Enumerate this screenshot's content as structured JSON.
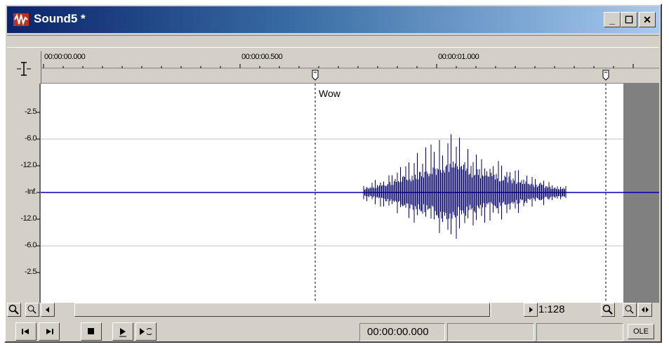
{
  "window": {
    "title": "Sound5 *",
    "controls": {
      "minimize": "_",
      "maximize": "☐",
      "close": "✕"
    }
  },
  "ruler": {
    "time_labels": [
      "00:00:00.000",
      "00:00:00.500",
      "00:00:01.000"
    ]
  },
  "db_scale": [
    "-2.5",
    "-6.0",
    "-12.0",
    "-Inf.",
    "-12.0",
    "-6.0",
    "-2.5"
  ],
  "waveform": {
    "marker_label": "Wow",
    "wave_color": "#000066",
    "center_line_color": "#0000aa"
  },
  "scroll": {
    "zoom_ratio": "1:128"
  },
  "status": {
    "position": "00:00:00.000",
    "selection": "",
    "length": "",
    "ole_label": "OLE"
  },
  "icons": [
    "sound-forge-app-icon",
    "level-ruler-icon",
    "marker-icon",
    "zoom-icon",
    "zoom-in-icon",
    "scroll-left-icon",
    "scroll-right-icon",
    "go-to-start-icon",
    "go-to-end-icon",
    "stop-icon",
    "play-icon",
    "play-all-icon"
  ]
}
